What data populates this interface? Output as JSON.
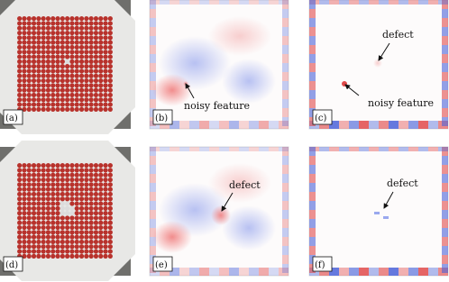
{
  "panels": [
    {
      "label": "(a)"
    },
    {
      "label": "(b)",
      "annotations": [
        "noisy feature"
      ]
    },
    {
      "label": "(c)",
      "annotations": [
        "defect",
        "noisy feature"
      ]
    },
    {
      "label": "(d)"
    },
    {
      "label": "(e)",
      "annotations": [
        "defect"
      ]
    },
    {
      "label": "(f)",
      "annotations": [
        "defect"
      ]
    }
  ]
}
